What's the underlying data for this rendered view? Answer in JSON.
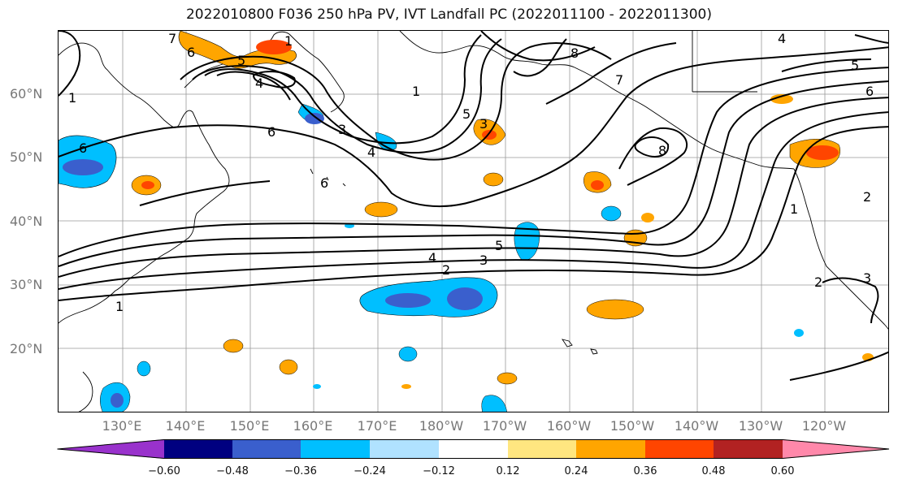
{
  "title": "2022010800 F036 250 hPa PV, IVT Landfall PC (2022011100 - 2022011300)",
  "lat_labels": [
    "60°N",
    "50°N",
    "40°N",
    "30°N",
    "20°N"
  ],
  "lon_labels": [
    "130°E",
    "140°E",
    "150°E",
    "160°E",
    "170°E",
    "180°W",
    "170°W",
    "160°W",
    "150°W",
    "140°W",
    "130°W",
    "120°W"
  ],
  "colorbar": {
    "ticks": [
      "−0.60",
      "−0.48",
      "−0.36",
      "−0.24",
      "−0.12",
      "0.12",
      "0.24",
      "0.36",
      "0.48",
      "0.60"
    ],
    "colors": [
      "#9932cc",
      "#000080",
      "#3a5fcd",
      "#00bfff",
      "#b0e2ff",
      "#ffffff",
      "#ffe680",
      "#ffa500",
      "#ff4500",
      "#b22222",
      "#ff88aa"
    ]
  },
  "contour_labels": [
    "7",
    "6",
    "1",
    "5",
    "4",
    "6",
    "3",
    "4",
    "6",
    "6",
    "1",
    "5",
    "3",
    "8",
    "7",
    "5",
    "6",
    "8",
    "4",
    "1",
    "2",
    "2",
    "3",
    "4",
    "1",
    "1",
    "2",
    "5",
    "3"
  ]
}
